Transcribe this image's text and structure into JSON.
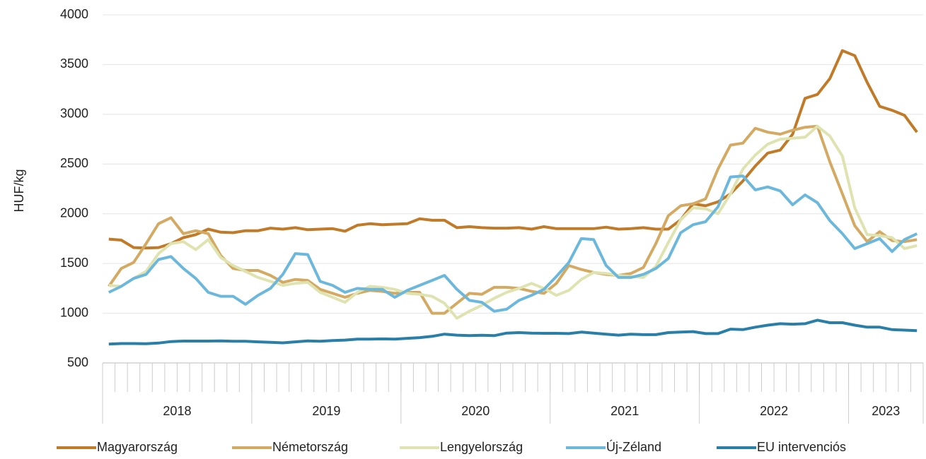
{
  "chart_data": {
    "type": "line",
    "y_label": "HUF/kg",
    "categories": [
      null,
      null,
      null,
      null,
      null,
      null,
      null,
      null,
      null,
      null,
      null,
      null,
      null,
      null,
      null,
      null,
      null,
      null,
      null,
      null,
      null,
      null,
      null,
      null,
      null,
      null,
      null,
      null,
      null,
      null,
      null,
      null,
      null,
      null,
      null,
      null,
      null,
      null,
      null,
      null,
      null,
      null,
      null,
      null,
      null,
      null,
      null,
      null,
      null,
      null,
      null,
      null,
      null,
      null,
      null,
      null,
      null,
      null,
      null,
      null,
      null,
      null,
      null,
      null,
      null,
      null
    ],
    "x_groups": [
      {
        "label": "2018",
        "months": 12
      },
      {
        "label": "2019",
        "months": 12
      },
      {
        "label": "2020",
        "months": 12
      },
      {
        "label": "2021",
        "months": 12
      },
      {
        "label": "2022",
        "months": 12
      },
      {
        "label": "2023",
        "months": 6
      }
    ],
    "ylim": [
      500,
      4000
    ],
    "yticks": [
      500,
      1000,
      1500,
      2000,
      2500,
      3000,
      3500,
      4000
    ],
    "grid": true,
    "legend": "bottom",
    "series": [
      {
        "name": "Magyarország",
        "color": "#c07a28",
        "values": [
          1745,
          1735,
          1660,
          1655,
          1660,
          1700,
          1760,
          1790,
          1845,
          1815,
          1810,
          1830,
          1830,
          1855,
          1845,
          1860,
          1840,
          1845,
          1850,
          1825,
          1885,
          1900,
          1890,
          1895,
          1900,
          1950,
          1935,
          1935,
          1860,
          1870,
          1860,
          1855,
          1855,
          1860,
          1845,
          1870,
          1850,
          1850,
          1850,
          1850,
          1865,
          1845,
          1850,
          1860,
          1845,
          1845,
          1940,
          2100,
          2080,
          2120,
          2200,
          2330,
          2480,
          2610,
          2640,
          2800,
          3160,
          3200,
          3360,
          3640,
          3590,
          3320,
          3080,
          3040,
          2990,
          2820
        ]
      },
      {
        "name": "Németország",
        "color": "#d4a962",
        "values": [
          1270,
          1450,
          1510,
          1700,
          1900,
          1960,
          1800,
          1830,
          1800,
          1580,
          1450,
          1430,
          1430,
          1380,
          1310,
          1340,
          1330,
          1240,
          1200,
          1160,
          1200,
          1230,
          1220,
          1200,
          1210,
          1210,
          1000,
          1000,
          1100,
          1200,
          1190,
          1260,
          1260,
          1250,
          1220,
          1200,
          1300,
          1480,
          1440,
          1410,
          1390,
          1380,
          1400,
          1460,
          1700,
          1980,
          2080,
          2100,
          2150,
          2450,
          2690,
          2710,
          2860,
          2820,
          2800,
          2840,
          2870,
          2880,
          2520,
          2200,
          1880,
          1720,
          1820,
          1730,
          1720,
          1740
        ]
      },
      {
        "name": "Lengyelország",
        "color": "#dfe3b0",
        "values": [
          1280,
          1270,
          1350,
          1420,
          1600,
          1700,
          1720,
          1640,
          1740,
          1560,
          1480,
          1420,
          1360,
          1320,
          1280,
          1300,
          1310,
          1210,
          1160,
          1110,
          1210,
          1270,
          1260,
          1240,
          1200,
          1190,
          1170,
          1100,
          950,
          1020,
          1080,
          1150,
          1210,
          1250,
          1300,
          1250,
          1180,
          1230,
          1340,
          1410,
          1400,
          1380,
          1370,
          1360,
          1470,
          1710,
          1940,
          2060,
          2050,
          2000,
          2200,
          2450,
          2590,
          2700,
          2750,
          2760,
          2770,
          2880,
          2780,
          2580,
          2060,
          1790,
          1780,
          1760,
          1650,
          1680
        ]
      },
      {
        "name": "Új-Zéland",
        "color": "#6bb8dc",
        "values": [
          1210,
          1270,
          1350,
          1390,
          1540,
          1570,
          1450,
          1350,
          1210,
          1170,
          1170,
          1090,
          1180,
          1250,
          1390,
          1600,
          1590,
          1320,
          1280,
          1210,
          1250,
          1240,
          1240,
          1160,
          1230,
          1280,
          1330,
          1380,
          1240,
          1130,
          1110,
          1020,
          1040,
          1130,
          1180,
          1240,
          1370,
          1510,
          1750,
          1740,
          1480,
          1360,
          1360,
          1390,
          1450,
          1550,
          1810,
          1890,
          1920,
          2070,
          2370,
          2380,
          2240,
          2270,
          2230,
          2090,
          2190,
          2110,
          1930,
          1800,
          1650,
          1700,
          1750,
          1620,
          1740,
          1800
        ]
      },
      {
        "name": "EU intervenciós",
        "color": "#2a7fa8",
        "values": [
          690,
          695,
          695,
          693,
          700,
          715,
          720,
          720,
          720,
          722,
          718,
          718,
          712,
          708,
          702,
          712,
          722,
          718,
          725,
          730,
          740,
          740,
          742,
          740,
          748,
          755,
          768,
          790,
          780,
          775,
          778,
          775,
          800,
          805,
          800,
          798,
          798,
          795,
          810,
          800,
          790,
          780,
          790,
          785,
          785,
          805,
          810,
          815,
          795,
          795,
          840,
          835,
          860,
          880,
          895,
          890,
          895,
          930,
          905,
          905,
          880,
          860,
          860,
          835,
          830,
          825
        ]
      }
    ]
  }
}
